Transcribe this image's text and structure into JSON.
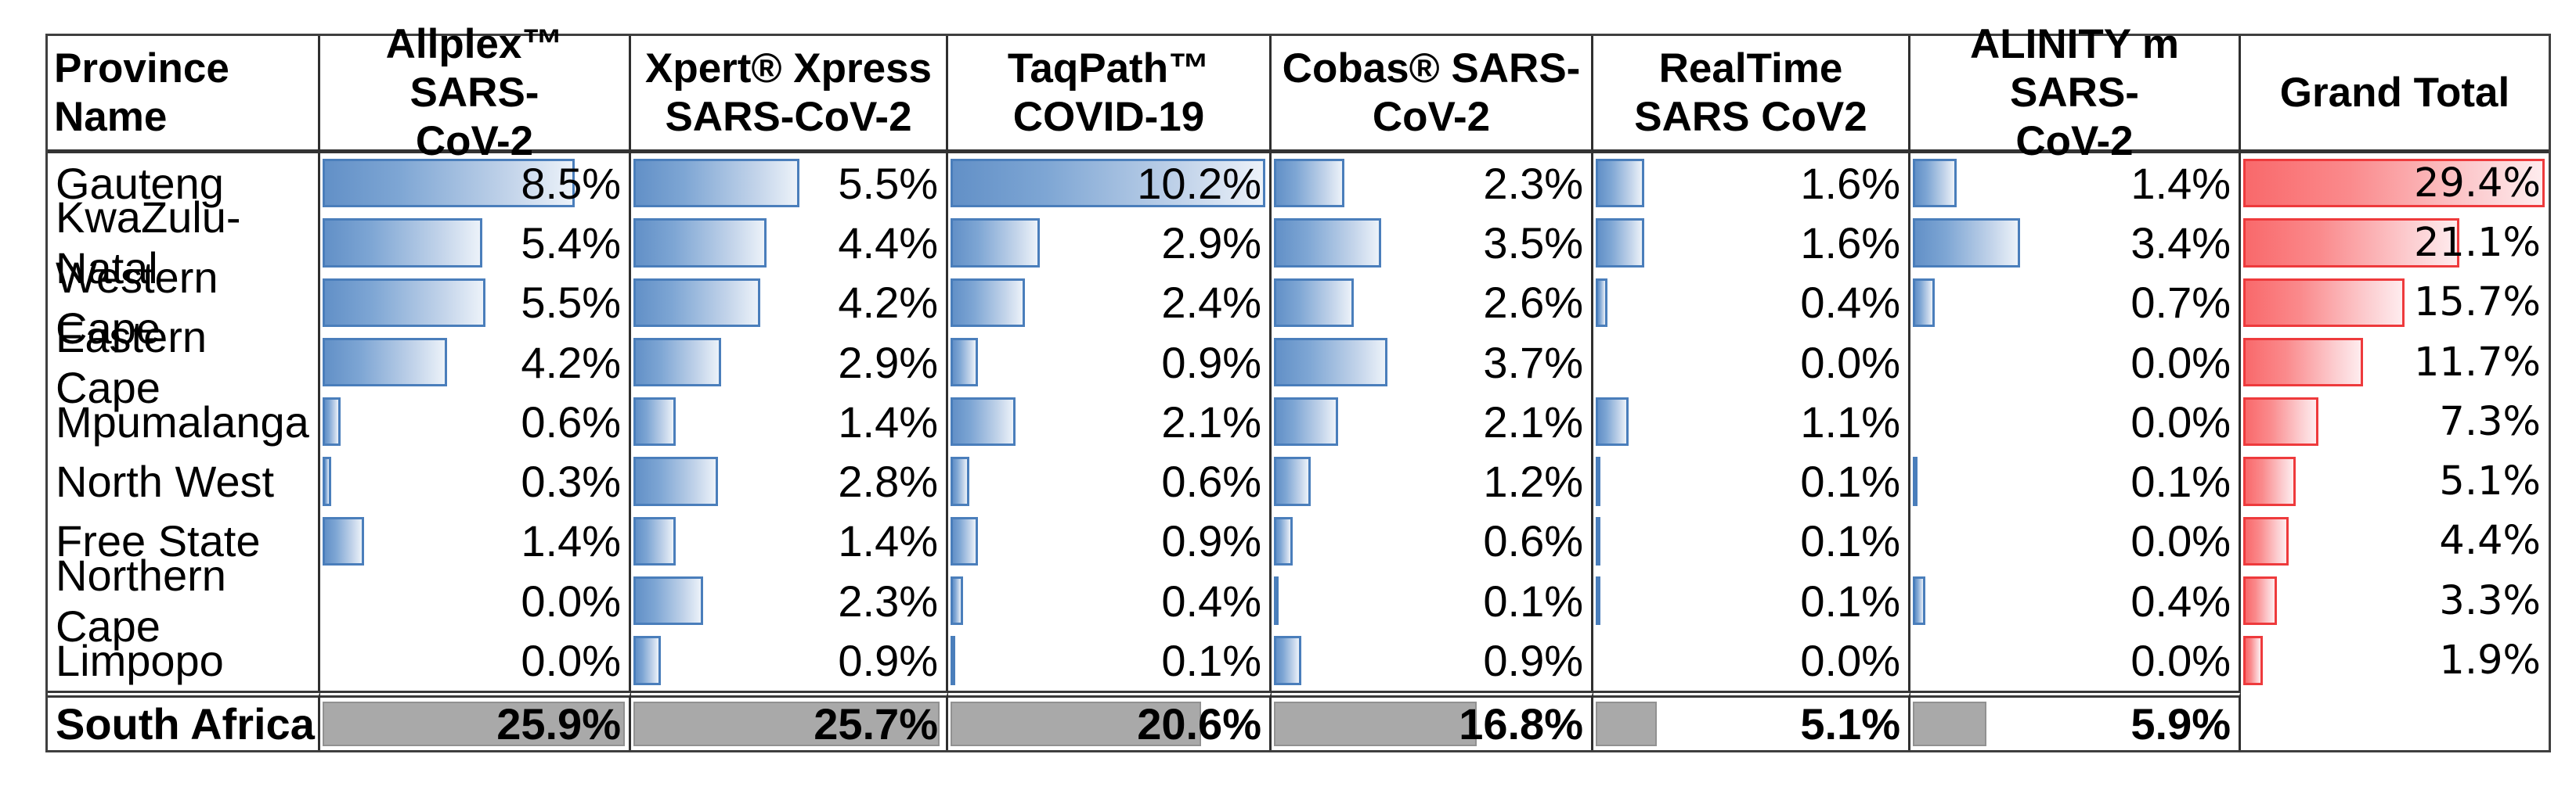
{
  "colors": {
    "bar_blue_fill": "#638ec6",
    "bar_blue_border": "#4a7ebb",
    "bar_red_fill": "#f9696b",
    "bar_red_border": "#ee3a3c",
    "bar_gray_fill": "#a9a9a9",
    "bar_gray_border": "#919191",
    "grid_line": "#2f2f2f",
    "text": "#000000"
  },
  "chart_data": {
    "type": "table",
    "title": "",
    "legend_position": "none",
    "grid": "column-separators-only",
    "value_format": "percent-1-decimal",
    "bar_styles": {
      "test_columns": "blue-gradient-databar",
      "grand_total_column": "red-gradient-databar",
      "total_row": "gray-solid-databar"
    },
    "columns": [
      {
        "label": "Province Name"
      },
      {
        "label": "Allplex™ SARS-\nCoV-2"
      },
      {
        "label": "Xpert® Xpress\nSARS-CoV-2"
      },
      {
        "label": "TaqPath™\nCOVID-19"
      },
      {
        "label": "Cobas® SARS-\nCoV-2"
      },
      {
        "label": "RealTime\nSARS CoV2"
      },
      {
        "label": "ALINITY m SARS-\nCoV-2"
      },
      {
        "label": "Grand Total"
      }
    ],
    "rows": [
      {
        "province": "Gauteng",
        "values": [
          8.5,
          5.5,
          10.2,
          2.3,
          1.6,
          1.4
        ],
        "grand_total": 29.4
      },
      {
        "province": "KwaZulu-Natal",
        "values": [
          5.4,
          4.4,
          2.9,
          3.5,
          1.6,
          3.4
        ],
        "grand_total": 21.1
      },
      {
        "province": "Western Cape",
        "values": [
          5.5,
          4.2,
          2.4,
          2.6,
          0.4,
          0.7
        ],
        "grand_total": 15.7
      },
      {
        "province": "Eastern Cape",
        "values": [
          4.2,
          2.9,
          0.9,
          3.7,
          0.0,
          0.0
        ],
        "grand_total": 11.7
      },
      {
        "province": "Mpumalanga",
        "values": [
          0.6,
          1.4,
          2.1,
          2.1,
          1.1,
          0.0
        ],
        "grand_total": 7.3
      },
      {
        "province": "North West",
        "values": [
          0.3,
          2.8,
          0.6,
          1.2,
          0.1,
          0.1
        ],
        "grand_total": 5.1
      },
      {
        "province": "Free State",
        "values": [
          1.4,
          1.4,
          0.9,
          0.6,
          0.1,
          0.0
        ],
        "grand_total": 4.4
      },
      {
        "province": "Northern Cape",
        "values": [
          0.0,
          2.3,
          0.4,
          0.1,
          0.1,
          0.4
        ],
        "grand_total": 3.3
      },
      {
        "province": "Limpopo",
        "values": [
          0.0,
          0.9,
          0.1,
          0.9,
          0.0,
          0.0
        ],
        "grand_total": 1.9
      }
    ],
    "total_row": {
      "label": "South Africa",
      "values": [
        25.9,
        25.7,
        20.6,
        16.8,
        5.1,
        5.9
      ],
      "grand_total": null
    }
  }
}
